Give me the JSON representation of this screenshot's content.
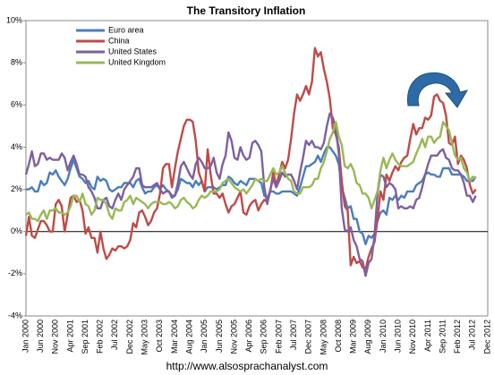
{
  "chart_data": {
    "type": "line",
    "title": "The Transitory Inflation",
    "footer": "http://www.alsosprachanalyst.com",
    "categories": [
      "Jan 2000",
      null,
      null,
      null,
      null,
      "Jun 2000",
      null,
      null,
      null,
      null,
      "Nov 2000",
      null,
      null,
      null,
      null,
      "Apr 2001",
      null,
      null,
      null,
      null,
      "Sep 2001",
      null,
      null,
      null,
      null,
      "Feb 2002",
      null,
      null,
      null,
      null,
      "Jul 2002",
      null,
      null,
      null,
      null,
      "Dec 2002",
      null,
      null,
      null,
      null,
      "May 2003",
      null,
      null,
      null,
      null,
      "Oct 2003",
      null,
      null,
      null,
      null,
      "Mar 2004",
      null,
      null,
      null,
      null,
      "Aug 2004",
      null,
      null,
      null,
      null,
      "Jan 2005",
      null,
      null,
      null,
      null,
      "Jun 2005",
      null,
      null,
      null,
      null,
      "Nov 2005",
      null,
      null,
      null,
      null,
      "Apr 2006",
      null,
      null,
      null,
      null,
      "Sep 2006",
      null,
      null,
      null,
      null,
      "Feb 2007",
      null,
      null,
      null,
      null,
      "Jul 2007",
      null,
      null,
      null,
      null,
      "Dec 2007",
      null,
      null,
      null,
      null,
      "May 2008",
      null,
      null,
      null,
      null,
      "Oct 2008",
      null,
      null,
      null,
      null,
      "Mar 2009",
      null,
      null,
      null,
      null,
      "Aug 2009",
      null,
      null,
      null,
      null,
      "Jan 2010",
      null,
      null,
      null,
      null,
      "Jun 2010",
      null,
      null,
      null,
      null,
      "Nov 2010",
      null,
      null,
      null,
      null,
      "Apr 2011",
      null,
      null,
      null,
      null,
      "Sep 2011",
      null,
      null,
      null,
      null,
      "Feb 2012",
      null,
      null,
      null,
      null,
      "Jul 2012",
      null,
      null,
      null,
      null,
      "Dec 2012"
    ],
    "series": [
      {
        "name": "Euro area",
        "color": "#4a7ebb",
        "values": [
          2.0,
          2.0,
          2.1,
          1.9,
          1.9,
          2.4,
          2.2,
          2.3,
          2.8,
          2.7,
          2.9,
          2.6,
          2.4,
          2.2,
          2.5,
          3.0,
          3.4,
          3.0,
          2.6,
          2.5,
          2.3,
          2.4,
          2.1,
          2.0,
          2.6,
          2.4,
          2.5,
          2.4,
          2.0,
          1.9,
          2.0,
          2.1,
          2.1,
          2.3,
          2.3,
          2.3,
          2.1,
          2.4,
          2.5,
          2.1,
          1.8,
          1.9,
          1.9,
          2.1,
          2.2,
          2.0,
          2.2,
          2.0,
          1.9,
          1.6,
          1.7,
          2.0,
          2.5,
          2.4,
          2.3,
          2.3,
          2.1,
          2.4,
          2.2,
          2.4,
          1.9,
          2.1,
          2.1,
          2.1,
          2.0,
          2.1,
          2.2,
          2.2,
          2.6,
          2.5,
          2.3,
          2.2,
          2.4,
          2.3,
          2.2,
          2.5,
          2.5,
          2.5,
          2.4,
          2.3,
          1.7,
          1.6,
          1.9,
          1.9,
          1.8,
          1.8,
          1.9,
          1.9,
          1.9,
          1.9,
          1.8,
          1.7,
          2.1,
          2.6,
          3.1,
          3.1,
          3.2,
          3.3,
          3.6,
          3.3,
          3.7,
          4.0,
          4.0,
          3.8,
          3.6,
          3.2,
          2.1,
          1.6,
          1.1,
          1.2,
          0.6,
          0.6,
          0.0,
          -0.1,
          -0.6,
          -0.2,
          -0.3,
          -0.1,
          0.5,
          0.9,
          1.0,
          0.8,
          1.6,
          1.5,
          1.7,
          1.5,
          1.7,
          1.6,
          1.9,
          1.9,
          1.9,
          2.2,
          2.3,
          2.4,
          2.7,
          2.8,
          2.7,
          2.7,
          2.6,
          2.6,
          3.0,
          3.0,
          3.0,
          2.7,
          2.7,
          2.7,
          2.7,
          2.6,
          2.4,
          2.4,
          2.4,
          2.6,
          null,
          null,
          null,
          null
        ]
      },
      {
        "name": "China",
        "color": "#be4b48",
        "values": [
          -0.2,
          0.7,
          -0.2,
          -0.3,
          0.1,
          0.5,
          0.5,
          0.3,
          0.0,
          0.0,
          1.3,
          1.5,
          1.2,
          0.0,
          0.8,
          1.6,
          1.7,
          1.4,
          1.5,
          1.0,
          -0.1,
          0.2,
          -0.3,
          -0.3,
          -1.0,
          0.0,
          -0.8,
          -1.3,
          -1.1,
          -0.8,
          -0.9,
          -0.7,
          -0.7,
          -0.8,
          -0.7,
          -0.4,
          0.4,
          0.2,
          0.9,
          1.0,
          0.7,
          0.3,
          0.5,
          0.9,
          1.1,
          1.8,
          3.0,
          3.2,
          3.2,
          2.1,
          3.0,
          3.8,
          4.4,
          5.0,
          5.3,
          5.3,
          5.2,
          4.3,
          2.8,
          2.4,
          1.9,
          3.9,
          2.7,
          1.8,
          1.8,
          1.6,
          1.8,
          1.3,
          0.9,
          1.2,
          1.3,
          1.6,
          1.9,
          0.9,
          0.8,
          1.2,
          1.4,
          1.5,
          1.0,
          1.3,
          1.5,
          1.4,
          1.9,
          2.8,
          2.2,
          2.7,
          3.3,
          3.0,
          3.4,
          4.4,
          5.6,
          6.5,
          6.2,
          6.5,
          6.9,
          6.5,
          7.1,
          8.7,
          8.3,
          8.5,
          7.7,
          7.1,
          6.3,
          4.9,
          4.6,
          4.0,
          2.4,
          1.2,
          1.0,
          -1.6,
          -1.2,
          -1.5,
          -1.4,
          -1.7,
          -1.8,
          -1.2,
          -0.8,
          -0.5,
          0.6,
          1.9,
          1.5,
          2.7,
          2.4,
          2.8,
          3.1,
          2.9,
          3.3,
          3.5,
          3.6,
          4.4,
          5.1,
          4.6,
          4.9,
          4.9,
          5.4,
          5.3,
          5.5,
          6.4,
          6.5,
          6.2,
          6.1,
          5.5,
          4.2,
          4.1,
          4.5,
          3.2,
          3.6,
          3.4,
          3.0,
          2.2,
          1.8,
          2.0,
          null,
          null,
          null,
          null
        ]
      },
      {
        "name": "United States",
        "color": "#7d60a0",
        "values": [
          2.7,
          3.2,
          3.8,
          3.1,
          3.2,
          3.7,
          3.7,
          3.4,
          3.5,
          3.4,
          3.4,
          3.4,
          3.7,
          3.5,
          2.9,
          3.3,
          3.6,
          3.2,
          2.7,
          2.7,
          2.6,
          2.1,
          1.9,
          1.6,
          1.1,
          1.1,
          1.5,
          1.6,
          1.2,
          1.1,
          1.5,
          1.8,
          1.5,
          2.0,
          2.2,
          2.4,
          2.6,
          3.0,
          3.0,
          2.2,
          2.1,
          2.1,
          2.1,
          2.2,
          2.3,
          2.0,
          1.8,
          1.9,
          1.9,
          1.7,
          1.7,
          2.3,
          3.1,
          3.3,
          3.0,
          2.7,
          2.5,
          3.2,
          3.5,
          3.3,
          3.0,
          3.0,
          3.1,
          3.5,
          2.8,
          2.5,
          3.2,
          3.6,
          4.7,
          4.3,
          3.5,
          3.4,
          4.0,
          3.6,
          3.4,
          3.5,
          4.2,
          4.3,
          4.1,
          3.8,
          2.1,
          1.3,
          2.0,
          2.5,
          2.1,
          2.4,
          2.8,
          2.6,
          2.7,
          2.7,
          2.4,
          2.0,
          2.8,
          3.5,
          4.3,
          4.1,
          4.3,
          4.0,
          4.0,
          3.9,
          4.2,
          5.0,
          5.6,
          5.4,
          4.9,
          3.7,
          1.1,
          0.1,
          0.0,
          0.2,
          -0.4,
          -0.7,
          -1.3,
          -1.4,
          -2.1,
          -1.5,
          -1.3,
          -0.2,
          1.8,
          2.7,
          2.6,
          2.1,
          2.3,
          2.2,
          2.0,
          1.1,
          1.2,
          1.1,
          1.1,
          1.2,
          1.1,
          1.5,
          1.6,
          2.1,
          2.7,
          3.2,
          3.6,
          3.6,
          3.6,
          3.8,
          3.9,
          3.5,
          3.4,
          3.0,
          2.9,
          2.9,
          2.7,
          2.3,
          1.7,
          1.7,
          1.4,
          1.7,
          null,
          null,
          null,
          null
        ]
      },
      {
        "name": "United Kingdom",
        "color": "#98b954",
        "values": [
          0.8,
          0.9,
          0.6,
          0.6,
          0.5,
          0.8,
          1.0,
          0.6,
          1.0,
          1.0,
          1.1,
          0.9,
          0.9,
          0.8,
          0.9,
          1.2,
          1.7,
          1.7,
          1.4,
          1.8,
          1.3,
          1.2,
          0.8,
          1.0,
          1.6,
          1.5,
          1.5,
          1.3,
          0.8,
          0.6,
          1.1,
          1.0,
          1.0,
          1.4,
          1.5,
          1.7,
          1.3,
          1.6,
          1.5,
          1.4,
          1.3,
          1.1,
          1.3,
          1.4,
          1.4,
          1.4,
          1.3,
          1.3,
          1.4,
          1.3,
          1.1,
          1.2,
          1.5,
          1.6,
          1.4,
          1.3,
          1.1,
          1.2,
          1.5,
          1.7,
          1.6,
          1.7,
          1.9,
          1.9,
          1.9,
          2.0,
          2.3,
          2.4,
          2.5,
          2.3,
          2.1,
          2.0,
          1.9,
          2.0,
          1.8,
          2.0,
          2.2,
          2.5,
          2.4,
          2.5,
          2.4,
          2.4,
          2.7,
          3.0,
          2.7,
          2.8,
          3.1,
          2.8,
          2.5,
          2.4,
          1.9,
          1.8,
          1.8,
          2.1,
          2.1,
          2.1,
          2.2,
          2.5,
          2.5,
          3.0,
          3.3,
          3.8,
          4.4,
          4.7,
          5.2,
          4.5,
          4.1,
          3.1,
          3.0,
          3.2,
          2.9,
          2.3,
          2.2,
          1.8,
          1.8,
          1.6,
          1.1,
          1.5,
          1.9,
          2.9,
          3.5,
          3.0,
          3.4,
          3.7,
          3.4,
          3.2,
          3.1,
          3.1,
          3.1,
          3.2,
          3.3,
          3.7,
          4.0,
          4.4,
          4.0,
          4.5,
          4.5,
          4.2,
          4.4,
          4.5,
          5.2,
          5.0,
          4.8,
          4.2,
          3.6,
          3.4,
          3.5,
          3.0,
          2.8,
          2.4,
          2.6,
          2.5,
          null,
          null,
          null,
          null
        ]
      }
    ],
    "ylim": [
      -4,
      10
    ],
    "yticks": [
      {
        "value": -4,
        "label": "-4%"
      },
      {
        "value": -2,
        "label": "-2%"
      },
      {
        "value": 0,
        "label": "0%"
      },
      {
        "value": 2,
        "label": "2%"
      },
      {
        "value": 4,
        "label": "4%"
      },
      {
        "value": 6,
        "label": "6%"
      },
      {
        "value": 8,
        "label": "8%"
      },
      {
        "value": 10,
        "label": "10%"
      }
    ],
    "zero_line": true,
    "legend": "upper left"
  }
}
